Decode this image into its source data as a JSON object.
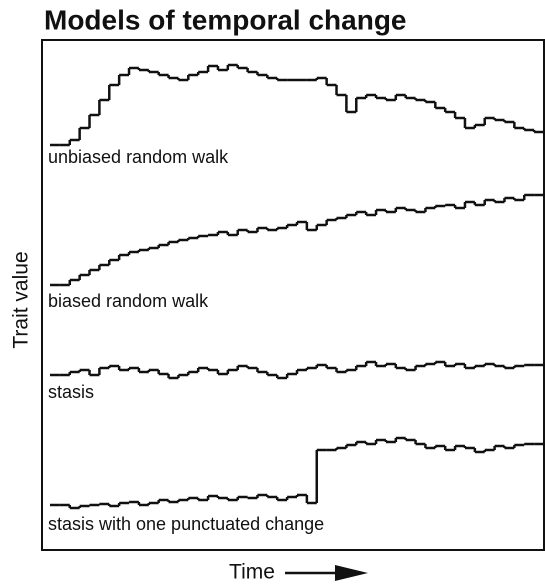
{
  "chart_data": {
    "type": "step",
    "title": "Models of temporal change",
    "y_label": "Trait value",
    "x_label": "Time",
    "ylim": [
      0,
      510
    ],
    "series": [
      {
        "name": "unbiased random walk",
        "color": "#111",
        "values": [
          405,
          405,
          410,
          422,
          435,
          450,
          465,
          475,
          482,
          480,
          478,
          475,
          472,
          470,
          475,
          478,
          484,
          480,
          485,
          482,
          478,
          475,
          472,
          470,
          470,
          470,
          470,
          472,
          465,
          455,
          438,
          452,
          455,
          452,
          450,
          455,
          452,
          450,
          448,
          442,
          438,
          432,
          422,
          425,
          432,
          430,
          428,
          422,
          420,
          418
        ]
      },
      {
        "name": "biased random walk",
        "color": "#111",
        "values": [
          265,
          265,
          270,
          275,
          280,
          285,
          290,
          295,
          298,
          300,
          302,
          305,
          308,
          310,
          312,
          314,
          315,
          318,
          315,
          320,
          318,
          322,
          320,
          322,
          325,
          328,
          320,
          325,
          330,
          332,
          335,
          338,
          335,
          340,
          338,
          342,
          340,
          338,
          342,
          344,
          345,
          342,
          348,
          345,
          350,
          348,
          352,
          350,
          355,
          355
        ]
      },
      {
        "name": "stasis",
        "color": "#111",
        "values": [
          175,
          175,
          178,
          180,
          175,
          182,
          184,
          180,
          182,
          178,
          180,
          176,
          172,
          175,
          178,
          182,
          180,
          176,
          180,
          184,
          182,
          178,
          175,
          172,
          176,
          180,
          182,
          185,
          182,
          178,
          180,
          184,
          188,
          184,
          186,
          182,
          180,
          184,
          186,
          188,
          184,
          186,
          182,
          184,
          186,
          184,
          182,
          184,
          185,
          185
        ]
      },
      {
        "name": "stasis with one punctuated change",
        "color": "#111",
        "values": [
          45,
          45,
          42,
          44,
          45,
          46,
          44,
          47,
          48,
          45,
          47,
          50,
          48,
          50,
          52,
          50,
          54,
          52,
          50,
          53,
          52,
          55,
          53,
          50,
          53,
          55,
          47,
          100,
          100,
          102,
          105,
          108,
          106,
          110,
          108,
          112,
          110,
          106,
          102,
          104,
          100,
          104,
          102,
          98,
          100,
          104,
          102,
          105,
          106,
          106
        ]
      }
    ]
  }
}
